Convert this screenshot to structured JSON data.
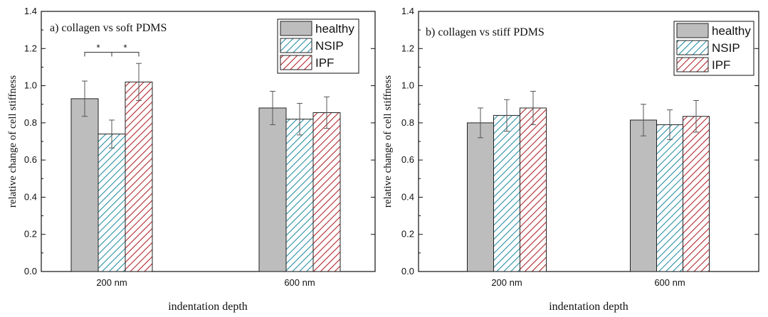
{
  "chart_data": [
    {
      "type": "bar",
      "title": "a) collagen vs soft PDMS",
      "xlabel": "indentation depth",
      "ylabel": "relative change of cell stiffness",
      "ylim": [
        0,
        1.4
      ],
      "yticks": [
        "0.0",
        "0.2",
        "0.4",
        "0.6",
        "0.8",
        "1.0",
        "1.2",
        "1.4"
      ],
      "categories": [
        "200 nm",
        "600 nm"
      ],
      "series": [
        {
          "name": "healthy",
          "values": [
            0.93,
            0.88
          ],
          "errors": [
            0.095,
            0.09
          ]
        },
        {
          "name": "NSIP",
          "values": [
            0.74,
            0.82
          ],
          "errors": [
            0.075,
            0.085
          ]
        },
        {
          "name": "IPF",
          "values": [
            1.02,
            0.855
          ],
          "errors": [
            0.1,
            0.085
          ]
        }
      ],
      "significance": [
        {
          "label": "*",
          "from_series": 0,
          "to_series": 1,
          "category": 0,
          "level": 1.18
        },
        {
          "label": "*",
          "from_series": 1,
          "to_series": 2,
          "category": 0,
          "level": 1.18
        }
      ],
      "legend_position": "top-right"
    },
    {
      "type": "bar",
      "title": "b) collagen vs stiff PDMS",
      "xlabel": "indentation depth",
      "ylabel": "relative change of cell stiffness",
      "ylim": [
        0,
        1.4
      ],
      "yticks": [
        "0.0",
        "0.2",
        "0.4",
        "0.6",
        "0.8",
        "1.0",
        "1.2",
        "1.4"
      ],
      "categories": [
        "200 nm",
        "600 nm"
      ],
      "series": [
        {
          "name": "healthy",
          "values": [
            0.8,
            0.815
          ],
          "errors": [
            0.08,
            0.085
          ]
        },
        {
          "name": "NSIP",
          "values": [
            0.84,
            0.79
          ],
          "errors": [
            0.085,
            0.08
          ]
        },
        {
          "name": "IPF",
          "values": [
            0.88,
            0.835
          ],
          "errors": [
            0.09,
            0.085
          ]
        }
      ],
      "significance": [],
      "legend_position": "top-right"
    }
  ],
  "colors": {
    "healthy_fill": "#bdbdbd",
    "nsip_hatch": "#2a8fa6",
    "ipf_hatch": "#b3282d",
    "axis": "#111111"
  }
}
